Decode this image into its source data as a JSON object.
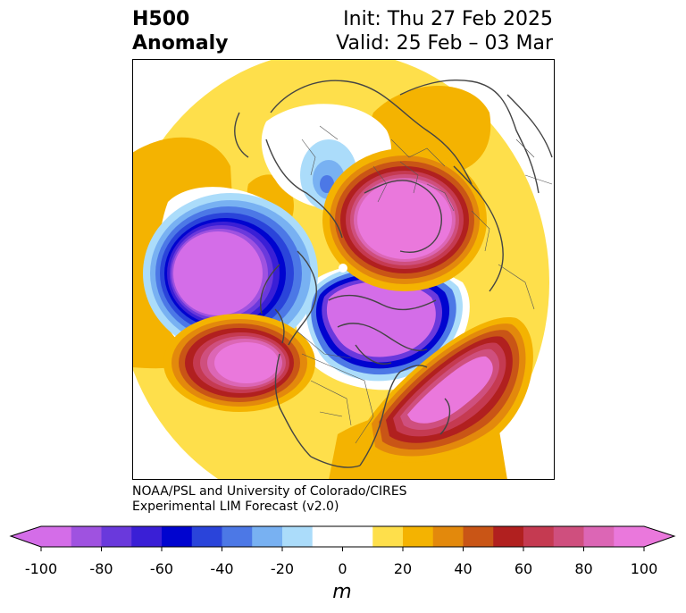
{
  "title": {
    "line1": "H500",
    "line2": "Anomaly"
  },
  "subtitle": {
    "init": "Init: Thu 27 Feb 2025",
    "valid": "Valid: 25 Feb – 03 Mar"
  },
  "credit": {
    "line1": "NOAA/PSL and University of Colorado/CIRES",
    "line2": "Experimental LIM Forecast (v2.0)"
  },
  "colorbar": {
    "label": "m",
    "ticks": [
      "-100",
      "-80",
      "-60",
      "-40",
      "-20",
      "0",
      "20",
      "40",
      "60",
      "80",
      "100"
    ],
    "min": -100,
    "max": 100,
    "step": 10,
    "colors": [
      "#d46de8",
      "#9f52e0",
      "#6a39dc",
      "#3a1fd6",
      "#0004cf",
      "#2a44da",
      "#4c78e6",
      "#78b1f2",
      "#abdcfa",
      "#ffffff",
      "#ffffff",
      "#fedf4b",
      "#f4b301",
      "#e3890c",
      "#c95516",
      "#b1201f",
      "#c53a51",
      "#cf4f7e",
      "#dc66b5",
      "#ea78dc"
    ],
    "under_color": "#d46de8",
    "over_color": "#ea78dc"
  },
  "map": {
    "projection": "polar stereographic (north pole)",
    "features": [
      {
        "name": "negative-anomaly-north-pacific",
        "value": -100
      },
      {
        "name": "positive-anomaly-northeast-pacific",
        "value": 80
      },
      {
        "name": "negative-anomaly-arctic-canada",
        "value": -100
      },
      {
        "name": "positive-anomaly-western-atlantic",
        "value": 100
      },
      {
        "name": "positive-anomaly-siberia",
        "value": 100
      },
      {
        "name": "negative-anomaly-europe",
        "value": -30
      }
    ]
  }
}
